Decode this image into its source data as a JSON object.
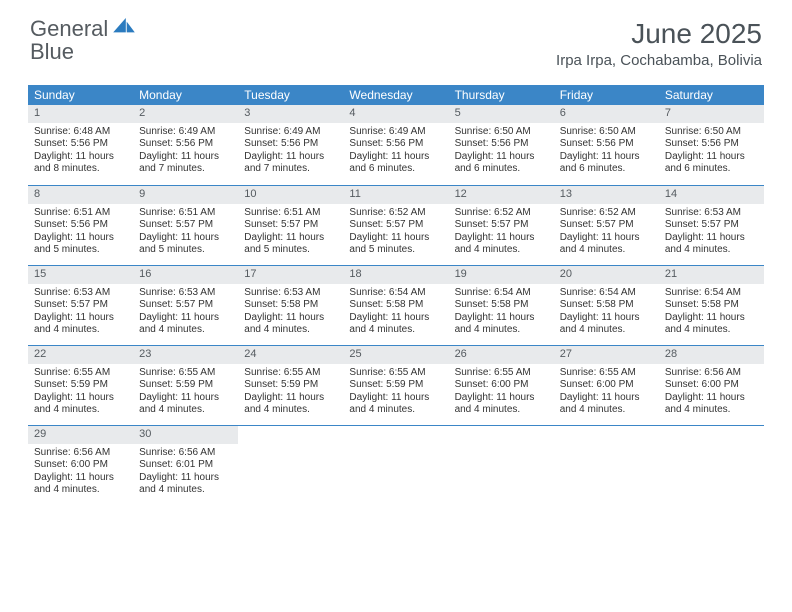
{
  "logo": {
    "word1": "General",
    "word2": "Blue"
  },
  "title": "June 2025",
  "location": "Irpa Irpa, Cochabamba, Bolivia",
  "colors": {
    "header_bar": "#3b86c7",
    "daynum_bg": "#e8eaec",
    "text": "#4a5258",
    "logo_gray": "#555b60",
    "logo_blue": "#2b7bbf"
  },
  "weekdays": [
    "Sunday",
    "Monday",
    "Tuesday",
    "Wednesday",
    "Thursday",
    "Friday",
    "Saturday"
  ],
  "weeks": [
    [
      {
        "n": "1",
        "sr": "Sunrise: 6:48 AM",
        "ss": "Sunset: 5:56 PM",
        "dl": "Daylight: 11 hours and 8 minutes."
      },
      {
        "n": "2",
        "sr": "Sunrise: 6:49 AM",
        "ss": "Sunset: 5:56 PM",
        "dl": "Daylight: 11 hours and 7 minutes."
      },
      {
        "n": "3",
        "sr": "Sunrise: 6:49 AM",
        "ss": "Sunset: 5:56 PM",
        "dl": "Daylight: 11 hours and 7 minutes."
      },
      {
        "n": "4",
        "sr": "Sunrise: 6:49 AM",
        "ss": "Sunset: 5:56 PM",
        "dl": "Daylight: 11 hours and 6 minutes."
      },
      {
        "n": "5",
        "sr": "Sunrise: 6:50 AM",
        "ss": "Sunset: 5:56 PM",
        "dl": "Daylight: 11 hours and 6 minutes."
      },
      {
        "n": "6",
        "sr": "Sunrise: 6:50 AM",
        "ss": "Sunset: 5:56 PM",
        "dl": "Daylight: 11 hours and 6 minutes."
      },
      {
        "n": "7",
        "sr": "Sunrise: 6:50 AM",
        "ss": "Sunset: 5:56 PM",
        "dl": "Daylight: 11 hours and 6 minutes."
      }
    ],
    [
      {
        "n": "8",
        "sr": "Sunrise: 6:51 AM",
        "ss": "Sunset: 5:56 PM",
        "dl": "Daylight: 11 hours and 5 minutes."
      },
      {
        "n": "9",
        "sr": "Sunrise: 6:51 AM",
        "ss": "Sunset: 5:57 PM",
        "dl": "Daylight: 11 hours and 5 minutes."
      },
      {
        "n": "10",
        "sr": "Sunrise: 6:51 AM",
        "ss": "Sunset: 5:57 PM",
        "dl": "Daylight: 11 hours and 5 minutes."
      },
      {
        "n": "11",
        "sr": "Sunrise: 6:52 AM",
        "ss": "Sunset: 5:57 PM",
        "dl": "Daylight: 11 hours and 5 minutes."
      },
      {
        "n": "12",
        "sr": "Sunrise: 6:52 AM",
        "ss": "Sunset: 5:57 PM",
        "dl": "Daylight: 11 hours and 4 minutes."
      },
      {
        "n": "13",
        "sr": "Sunrise: 6:52 AM",
        "ss": "Sunset: 5:57 PM",
        "dl": "Daylight: 11 hours and 4 minutes."
      },
      {
        "n": "14",
        "sr": "Sunrise: 6:53 AM",
        "ss": "Sunset: 5:57 PM",
        "dl": "Daylight: 11 hours and 4 minutes."
      }
    ],
    [
      {
        "n": "15",
        "sr": "Sunrise: 6:53 AM",
        "ss": "Sunset: 5:57 PM",
        "dl": "Daylight: 11 hours and 4 minutes."
      },
      {
        "n": "16",
        "sr": "Sunrise: 6:53 AM",
        "ss": "Sunset: 5:57 PM",
        "dl": "Daylight: 11 hours and 4 minutes."
      },
      {
        "n": "17",
        "sr": "Sunrise: 6:53 AM",
        "ss": "Sunset: 5:58 PM",
        "dl": "Daylight: 11 hours and 4 minutes."
      },
      {
        "n": "18",
        "sr": "Sunrise: 6:54 AM",
        "ss": "Sunset: 5:58 PM",
        "dl": "Daylight: 11 hours and 4 minutes."
      },
      {
        "n": "19",
        "sr": "Sunrise: 6:54 AM",
        "ss": "Sunset: 5:58 PM",
        "dl": "Daylight: 11 hours and 4 minutes."
      },
      {
        "n": "20",
        "sr": "Sunrise: 6:54 AM",
        "ss": "Sunset: 5:58 PM",
        "dl": "Daylight: 11 hours and 4 minutes."
      },
      {
        "n": "21",
        "sr": "Sunrise: 6:54 AM",
        "ss": "Sunset: 5:58 PM",
        "dl": "Daylight: 11 hours and 4 minutes."
      }
    ],
    [
      {
        "n": "22",
        "sr": "Sunrise: 6:55 AM",
        "ss": "Sunset: 5:59 PM",
        "dl": "Daylight: 11 hours and 4 minutes."
      },
      {
        "n": "23",
        "sr": "Sunrise: 6:55 AM",
        "ss": "Sunset: 5:59 PM",
        "dl": "Daylight: 11 hours and 4 minutes."
      },
      {
        "n": "24",
        "sr": "Sunrise: 6:55 AM",
        "ss": "Sunset: 5:59 PM",
        "dl": "Daylight: 11 hours and 4 minutes."
      },
      {
        "n": "25",
        "sr": "Sunrise: 6:55 AM",
        "ss": "Sunset: 5:59 PM",
        "dl": "Daylight: 11 hours and 4 minutes."
      },
      {
        "n": "26",
        "sr": "Sunrise: 6:55 AM",
        "ss": "Sunset: 6:00 PM",
        "dl": "Daylight: 11 hours and 4 minutes."
      },
      {
        "n": "27",
        "sr": "Sunrise: 6:55 AM",
        "ss": "Sunset: 6:00 PM",
        "dl": "Daylight: 11 hours and 4 minutes."
      },
      {
        "n": "28",
        "sr": "Sunrise: 6:56 AM",
        "ss": "Sunset: 6:00 PM",
        "dl": "Daylight: 11 hours and 4 minutes."
      }
    ],
    [
      {
        "n": "29",
        "sr": "Sunrise: 6:56 AM",
        "ss": "Sunset: 6:00 PM",
        "dl": "Daylight: 11 hours and 4 minutes."
      },
      {
        "n": "30",
        "sr": "Sunrise: 6:56 AM",
        "ss": "Sunset: 6:01 PM",
        "dl": "Daylight: 11 hours and 4 minutes."
      },
      null,
      null,
      null,
      null,
      null
    ]
  ]
}
